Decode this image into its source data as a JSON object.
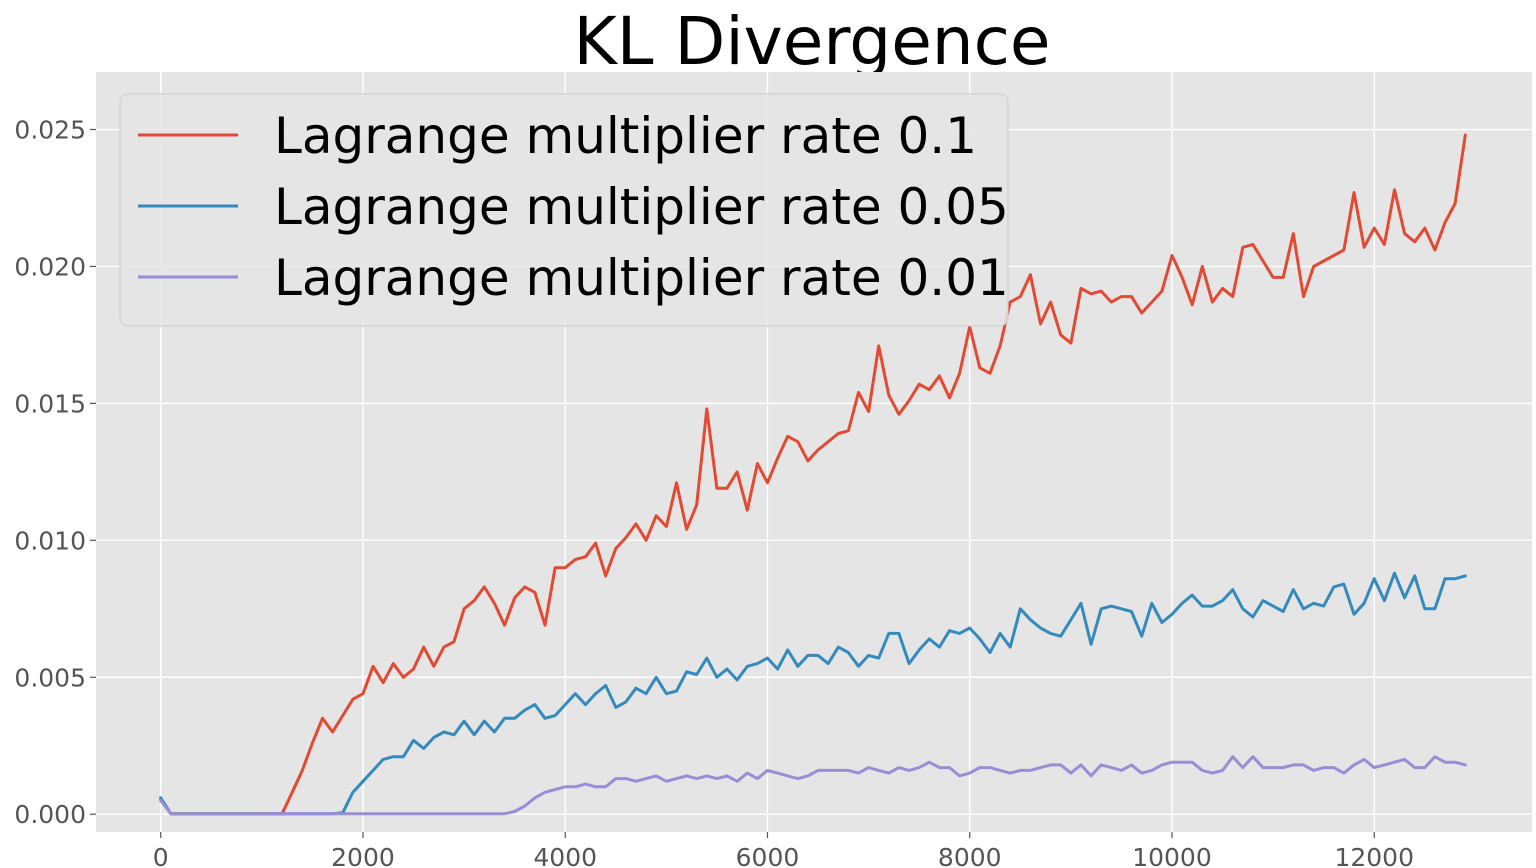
{
  "chart_data": {
    "type": "line",
    "title": "KL Divergence",
    "xlabel": "",
    "ylabel": "",
    "xlim": [
      -640,
      13560
    ],
    "ylim": [
      -0.00065,
      0.0271
    ],
    "xticks": [
      0,
      2000,
      4000,
      6000,
      8000,
      10000,
      12000
    ],
    "xtick_labels": [
      "0",
      "2000",
      "4000",
      "6000",
      "8000",
      "10000",
      "12000"
    ],
    "yticks": [
      0.0,
      0.005,
      0.01,
      0.015,
      0.02,
      0.025
    ],
    "ytick_labels": [
      "0.000",
      "0.005",
      "0.010",
      "0.015",
      "0.020",
      "0.025"
    ],
    "grid": true,
    "legend_position": "top-left",
    "colors": {
      "background": "#e5e5e5",
      "grid": "#ffffff",
      "legend_edge": "#cccccc"
    },
    "series": [
      {
        "name": "Lagrange multiplier rate 0.1",
        "color": "#e24a33",
        "x": [
          0,
          100,
          200,
          300,
          400,
          500,
          600,
          700,
          800,
          900,
          1000,
          1100,
          1200,
          1300,
          1400,
          1500,
          1600,
          1700,
          1800,
          1900,
          2000,
          2100,
          2200,
          2300,
          2400,
          2500,
          2600,
          2700,
          2800,
          2900,
          3000,
          3100,
          3200,
          3300,
          3400,
          3500,
          3600,
          3700,
          3800,
          3900,
          4000,
          4100,
          4200,
          4300,
          4400,
          4500,
          4600,
          4700,
          4800,
          4900,
          5000,
          5100,
          5200,
          5300,
          5400,
          5500,
          5600,
          5700,
          5800,
          5900,
          6000,
          6100,
          6200,
          6300,
          6400,
          6500,
          6600,
          6700,
          6800,
          6900,
          7000,
          7100,
          7200,
          7300,
          7400,
          7500,
          7600,
          7700,
          7800,
          7900,
          8000,
          8100,
          8200,
          8300,
          8400,
          8500,
          8600,
          8700,
          8800,
          8900,
          9000,
          9100,
          9200,
          9300,
          9400,
          9500,
          9600,
          9700,
          9800,
          9900,
          10000,
          10100,
          10200,
          10300,
          10400,
          10500,
          10600,
          10700,
          10800,
          10900,
          11000,
          11100,
          11200,
          11300,
          11400,
          11500,
          11600,
          11700,
          11800,
          11900,
          12000,
          12100,
          12200,
          12300,
          12400,
          12500,
          12600,
          12700,
          12800,
          12900
        ],
        "y": [
          0.00055,
          2e-05,
          2e-05,
          2e-05,
          2e-05,
          2e-05,
          2e-05,
          2e-05,
          2e-05,
          2e-05,
          2e-05,
          2e-05,
          2e-05,
          0.0008,
          0.0016,
          0.0026,
          0.0035,
          0.003,
          0.0036,
          0.0042,
          0.0044,
          0.0054,
          0.0048,
          0.0055,
          0.005,
          0.0053,
          0.0061,
          0.0054,
          0.0061,
          0.0063,
          0.0075,
          0.0078,
          0.0083,
          0.0077,
          0.0069,
          0.0079,
          0.0083,
          0.0081,
          0.0069,
          0.009,
          0.009,
          0.0093,
          0.0094,
          0.0099,
          0.0087,
          0.0097,
          0.0101,
          0.0106,
          0.01,
          0.0109,
          0.0105,
          0.0121,
          0.0104,
          0.0113,
          0.0148,
          0.0119,
          0.0119,
          0.0125,
          0.0111,
          0.0128,
          0.0121,
          0.013,
          0.0138,
          0.0136,
          0.0129,
          0.0133,
          0.0136,
          0.0139,
          0.014,
          0.0154,
          0.0147,
          0.0171,
          0.0153,
          0.0146,
          0.0151,
          0.0157,
          0.0155,
          0.016,
          0.0152,
          0.0161,
          0.0178,
          0.0163,
          0.0161,
          0.0171,
          0.0187,
          0.0189,
          0.0197,
          0.0179,
          0.0187,
          0.0175,
          0.0172,
          0.0192,
          0.019,
          0.0191,
          0.0187,
          0.0189,
          0.0189,
          0.0183,
          0.0187,
          0.0191,
          0.0204,
          0.0196,
          0.0186,
          0.02,
          0.0187,
          0.0192,
          0.0189,
          0.0207,
          0.0208,
          0.0202,
          0.0196,
          0.0196,
          0.0212,
          0.0189,
          0.02,
          0.0202,
          0.0204,
          0.0206,
          0.0227,
          0.0207,
          0.0214,
          0.0208,
          0.0228,
          0.0212,
          0.0209,
          0.0214,
          0.0206,
          0.0216,
          0.0223,
          0.0248
        ]
      },
      {
        "name": "Lagrange multiplier rate 0.05",
        "color": "#348abd",
        "x": [
          0,
          100,
          200,
          300,
          400,
          500,
          600,
          700,
          800,
          900,
          1000,
          1100,
          1200,
          1300,
          1400,
          1500,
          1600,
          1700,
          1800,
          1900,
          2000,
          2100,
          2200,
          2300,
          2400,
          2500,
          2600,
          2700,
          2800,
          2900,
          3000,
          3100,
          3200,
          3300,
          3400,
          3500,
          3600,
          3700,
          3800,
          3900,
          4000,
          4100,
          4200,
          4300,
          4400,
          4500,
          4600,
          4700,
          4800,
          4900,
          5000,
          5100,
          5200,
          5300,
          5400,
          5500,
          5600,
          5700,
          5800,
          5900,
          6000,
          6100,
          6200,
          6300,
          6400,
          6500,
          6600,
          6700,
          6800,
          6900,
          7000,
          7100,
          7200,
          7300,
          7400,
          7500,
          7600,
          7700,
          7800,
          7900,
          8000,
          8100,
          8200,
          8300,
          8400,
          8500,
          8600,
          8700,
          8800,
          8900,
          9000,
          9100,
          9200,
          9300,
          9400,
          9500,
          9600,
          9700,
          9800,
          9900,
          10000,
          10100,
          10200,
          10300,
          10400,
          10500,
          10600,
          10700,
          10800,
          10900,
          11000,
          11100,
          11200,
          11300,
          11400,
          11500,
          11600,
          11700,
          11800,
          11900,
          12000,
          12100,
          12200,
          12300,
          12400,
          12500,
          12600,
          12700,
          12800,
          12900
        ],
        "y": [
          0.0006,
          2e-05,
          2e-05,
          2e-05,
          2e-05,
          2e-05,
          2e-05,
          2e-05,
          2e-05,
          2e-05,
          2e-05,
          2e-05,
          2e-05,
          2e-05,
          2e-05,
          2e-05,
          2e-05,
          2e-05,
          5e-05,
          0.0008,
          0.0012,
          0.0016,
          0.002,
          0.0021,
          0.0021,
          0.0027,
          0.0024,
          0.0028,
          0.003,
          0.0029,
          0.0034,
          0.0029,
          0.0034,
          0.003,
          0.0035,
          0.0035,
          0.0038,
          0.004,
          0.0035,
          0.0036,
          0.004,
          0.0044,
          0.004,
          0.0044,
          0.0047,
          0.0039,
          0.0041,
          0.0046,
          0.0044,
          0.005,
          0.0044,
          0.0045,
          0.0052,
          0.0051,
          0.0057,
          0.005,
          0.0053,
          0.0049,
          0.0054,
          0.0055,
          0.0057,
          0.0053,
          0.006,
          0.0054,
          0.0058,
          0.0058,
          0.0055,
          0.0061,
          0.0059,
          0.0054,
          0.0058,
          0.0057,
          0.0066,
          0.0066,
          0.0055,
          0.006,
          0.0064,
          0.0061,
          0.0067,
          0.0066,
          0.0068,
          0.0064,
          0.0059,
          0.0066,
          0.0061,
          0.0075,
          0.0071,
          0.0068,
          0.0066,
          0.0065,
          0.0071,
          0.0077,
          0.0062,
          0.0075,
          0.0076,
          0.0075,
          0.0074,
          0.0065,
          0.0077,
          0.007,
          0.0073,
          0.0077,
          0.008,
          0.0076,
          0.0076,
          0.0078,
          0.0082,
          0.0075,
          0.0072,
          0.0078,
          0.0076,
          0.0074,
          0.0082,
          0.0075,
          0.0077,
          0.0076,
          0.0083,
          0.0084,
          0.0073,
          0.0077,
          0.0086,
          0.0078,
          0.0088,
          0.0079,
          0.0087,
          0.0075,
          0.0075,
          0.0086,
          0.0086,
          0.0087
        ]
      },
      {
        "name": "Lagrange multiplier rate 0.01",
        "color": "#988ed5",
        "x": [
          0,
          100,
          200,
          300,
          400,
          500,
          600,
          700,
          800,
          900,
          1000,
          1100,
          1200,
          1300,
          1400,
          1500,
          1600,
          1700,
          1800,
          1900,
          2000,
          2100,
          2200,
          2300,
          2400,
          2500,
          2600,
          2700,
          2800,
          2900,
          3000,
          3100,
          3200,
          3300,
          3400,
          3500,
          3600,
          3700,
          3800,
          3900,
          4000,
          4100,
          4200,
          4300,
          4400,
          4500,
          4600,
          4700,
          4800,
          4900,
          5000,
          5100,
          5200,
          5300,
          5400,
          5500,
          5600,
          5700,
          5800,
          5900,
          6000,
          6100,
          6200,
          6300,
          6400,
          6500,
          6600,
          6700,
          6800,
          6900,
          7000,
          7100,
          7200,
          7300,
          7400,
          7500,
          7600,
          7700,
          7800,
          7900,
          8000,
          8100,
          8200,
          8300,
          8400,
          8500,
          8600,
          8700,
          8800,
          8900,
          9000,
          9100,
          9200,
          9300,
          9400,
          9500,
          9600,
          9700,
          9800,
          9900,
          10000,
          10100,
          10200,
          10300,
          10400,
          10500,
          10600,
          10700,
          10800,
          10900,
          11000,
          11100,
          11200,
          11300,
          11400,
          11500,
          11600,
          11700,
          11800,
          11900,
          12000,
          12100,
          12200,
          12300,
          12400,
          12500,
          12600,
          12700,
          12800,
          12900
        ],
        "y": [
          0.0005,
          2e-05,
          2e-05,
          2e-05,
          2e-05,
          2e-05,
          2e-05,
          2e-05,
          2e-05,
          2e-05,
          2e-05,
          2e-05,
          2e-05,
          2e-05,
          2e-05,
          2e-05,
          2e-05,
          2e-05,
          2e-05,
          2e-05,
          2e-05,
          2e-05,
          2e-05,
          2e-05,
          2e-05,
          2e-05,
          2e-05,
          2e-05,
          2e-05,
          2e-05,
          2e-05,
          2e-05,
          2e-05,
          2e-05,
          2e-05,
          0.0001,
          0.0003,
          0.0006,
          0.0008,
          0.0009,
          0.001,
          0.001,
          0.0011,
          0.001,
          0.001,
          0.0013,
          0.0013,
          0.0012,
          0.0013,
          0.0014,
          0.0012,
          0.0013,
          0.0014,
          0.0013,
          0.0014,
          0.0013,
          0.0014,
          0.0012,
          0.0015,
          0.0013,
          0.0016,
          0.0015,
          0.0014,
          0.0013,
          0.0014,
          0.0016,
          0.0016,
          0.0016,
          0.0016,
          0.0015,
          0.0017,
          0.0016,
          0.0015,
          0.0017,
          0.0016,
          0.0017,
          0.0019,
          0.0017,
          0.0017,
          0.0014,
          0.0015,
          0.0017,
          0.0017,
          0.0016,
          0.0015,
          0.0016,
          0.0016,
          0.0017,
          0.0018,
          0.0018,
          0.0015,
          0.0018,
          0.0014,
          0.0018,
          0.0017,
          0.0016,
          0.0018,
          0.0015,
          0.0016,
          0.0018,
          0.0019,
          0.0019,
          0.0019,
          0.0016,
          0.0015,
          0.0016,
          0.0021,
          0.0017,
          0.0021,
          0.0017,
          0.0017,
          0.0017,
          0.0018,
          0.0018,
          0.0016,
          0.0017,
          0.0017,
          0.0015,
          0.0018,
          0.002,
          0.0017,
          0.0018,
          0.0019,
          0.002,
          0.0017,
          0.0017,
          0.0021,
          0.0019,
          0.0019,
          0.0018
        ]
      }
    ]
  }
}
